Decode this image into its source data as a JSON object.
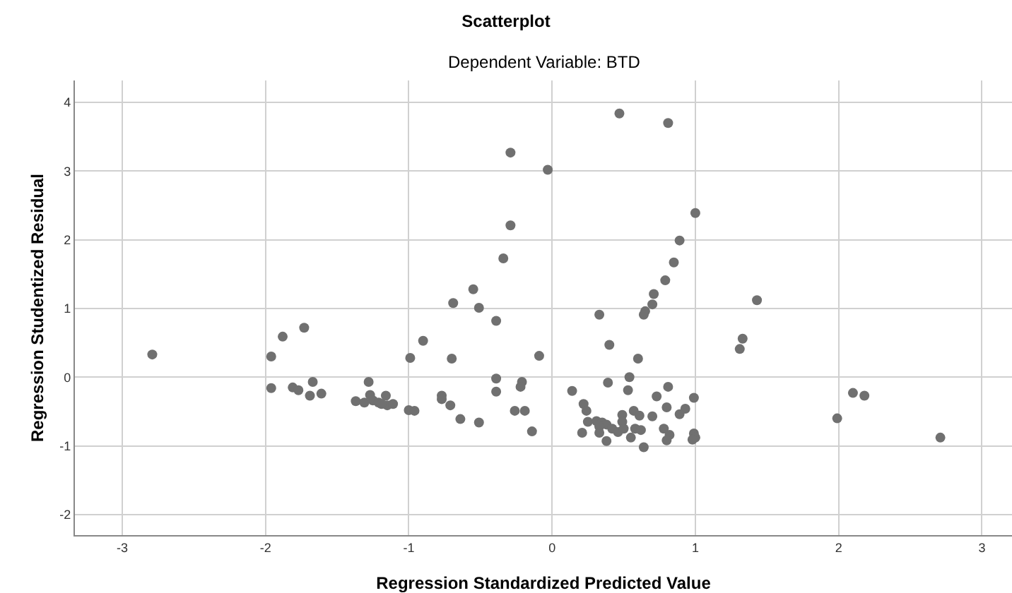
{
  "chart_data": {
    "type": "scatter",
    "title": "Scatterplot",
    "subtitle": "Dependent Variable: BTD",
    "xlabel": "Regression Standardized Predicted Value",
    "ylabel": "Regression Studentized Residual",
    "xlim": [
      -3.33,
      3.21
    ],
    "ylim": [
      -2.3,
      4.32
    ],
    "xticks": [
      -3,
      -2,
      -1,
      0,
      1,
      2,
      3
    ],
    "yticks": [
      -2,
      -1,
      0,
      1,
      2,
      3,
      4
    ],
    "grid": true,
    "marker": "circle",
    "series": [
      {
        "color": "#707070",
        "x": [
          -2.79,
          -1.88,
          -1.73,
          -1.96,
          -0.9,
          0.47,
          0.81,
          -0.29,
          -0.03,
          1.0,
          0.89,
          0.85,
          0.79,
          0.71,
          0.7,
          0.65,
          0.64,
          0.33,
          0.4,
          -0.29,
          -0.34,
          -0.55,
          -0.69,
          -0.51,
          -0.39,
          -0.09,
          1.43,
          1.33,
          1.31,
          2.1,
          2.18,
          1.99,
          2.71,
          -1.96,
          -1.81,
          -1.77,
          -1.67,
          -1.69,
          -1.61,
          -1.37,
          -1.31,
          -1.28,
          -1.27,
          -1.25,
          -1.21,
          -1.16,
          -1.15,
          -1.11,
          -1.19,
          -1.0,
          -0.96,
          -0.99,
          -0.7,
          -0.77,
          -0.77,
          -0.71,
          -0.64,
          -0.51,
          -0.39,
          -0.39,
          -0.21,
          -0.22,
          -0.26,
          -0.19,
          -0.14,
          0.6,
          0.54,
          0.39,
          0.53,
          0.14,
          0.22,
          0.24,
          0.81,
          0.73,
          0.99,
          0.8,
          0.93,
          0.89,
          0.57,
          0.61,
          0.49,
          0.7,
          0.25,
          0.31,
          0.35,
          0.38,
          0.33,
          0.42,
          0.46,
          0.49,
          0.5,
          0.58,
          0.62,
          0.21,
          0.33,
          0.38,
          0.55,
          0.64,
          0.78,
          0.82,
          0.8,
          0.99,
          1.0,
          0.98
        ],
        "values": [
          0.33,
          0.59,
          0.72,
          0.3,
          0.53,
          3.84,
          3.7,
          3.27,
          3.02,
          2.39,
          1.99,
          1.67,
          1.41,
          1.21,
          1.06,
          0.96,
          0.91,
          0.91,
          0.47,
          2.21,
          1.73,
          1.28,
          1.08,
          1.01,
          0.82,
          0.31,
          1.12,
          0.56,
          0.41,
          -0.23,
          -0.27,
          -0.6,
          -0.88,
          -0.16,
          -0.15,
          -0.19,
          -0.07,
          -0.27,
          -0.24,
          -0.35,
          -0.37,
          -0.07,
          -0.26,
          -0.34,
          -0.37,
          -0.27,
          -0.41,
          -0.39,
          -0.39,
          -0.48,
          -0.49,
          0.28,
          0.27,
          -0.27,
          -0.32,
          -0.41,
          -0.61,
          -0.66,
          -0.02,
          -0.21,
          -0.07,
          -0.14,
          -0.49,
          -0.49,
          -0.79,
          0.27,
          0.0,
          -0.08,
          -0.19,
          -0.2,
          -0.39,
          -0.49,
          -0.14,
          -0.28,
          -0.3,
          -0.44,
          -0.46,
          -0.54,
          -0.49,
          -0.56,
          -0.55,
          -0.57,
          -0.65,
          -0.64,
          -0.66,
          -0.69,
          -0.72,
          -0.75,
          -0.8,
          -0.65,
          -0.75,
          -0.75,
          -0.77,
          -0.81,
          -0.81,
          -0.93,
          -0.88,
          -1.02,
          -0.75,
          -0.84,
          -0.92,
          -0.82,
          -0.88,
          -0.91
        ]
      }
    ]
  }
}
